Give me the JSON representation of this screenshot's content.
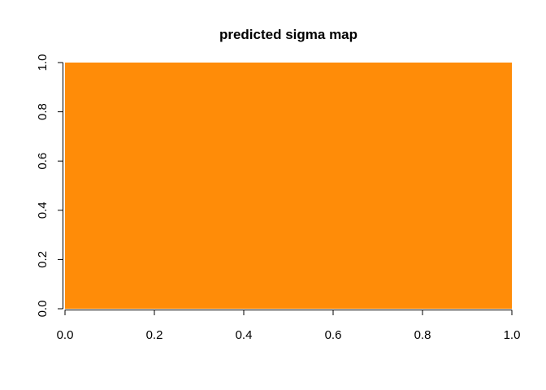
{
  "chart_data": {
    "type": "heatmap",
    "title": "predicted sigma map",
    "xlabel": "",
    "ylabel": "",
    "xlim": [
      0,
      1
    ],
    "ylim": [
      0,
      1
    ],
    "x_ticks": [
      "0.0",
      "0.2",
      "0.4",
      "0.6",
      "0.8",
      "1.0"
    ],
    "y_ticks": [
      "0.0",
      "0.2",
      "0.4",
      "0.6",
      "0.8",
      "1.0"
    ],
    "grid": false,
    "legend": "none",
    "fill_color": "#FF8C08",
    "cells": [
      {
        "x": [
          0,
          1
        ],
        "y": [
          0,
          1
        ],
        "color": "#FF8C08"
      }
    ]
  }
}
